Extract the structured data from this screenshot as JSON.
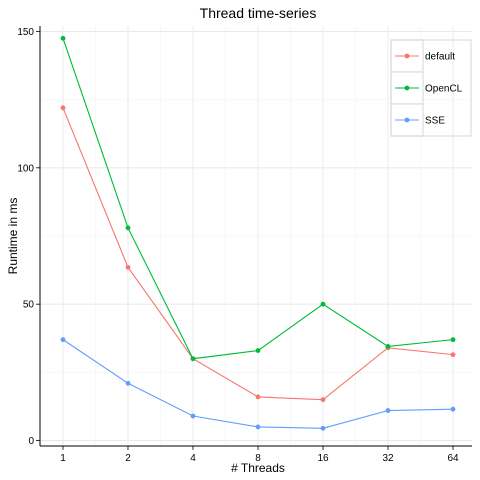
{
  "chart_data": {
    "type": "line",
    "title": "Thread time-series",
    "xlabel": "# Threads",
    "ylabel": "Runtime in ms",
    "categories": [
      "1",
      "2",
      "4",
      "8",
      "16",
      "32",
      "64"
    ],
    "series": [
      {
        "name": "default",
        "color": "#F8766D",
        "values": [
          122,
          63.5,
          30,
          16,
          15,
          34,
          31.5
        ]
      },
      {
        "name": "OpenCL",
        "color": "#00BA38",
        "values": [
          147.5,
          78,
          30,
          33,
          50,
          34.5,
          37
        ]
      },
      {
        "name": "SSE",
        "color": "#619CFF",
        "values": [
          37,
          21,
          9,
          5,
          4.5,
          11,
          11.5
        ]
      }
    ],
    "yticks": [
      0,
      50,
      100,
      150
    ],
    "ylim": [
      -2,
      152
    ],
    "grid": true,
    "legend_position": "top-right"
  }
}
